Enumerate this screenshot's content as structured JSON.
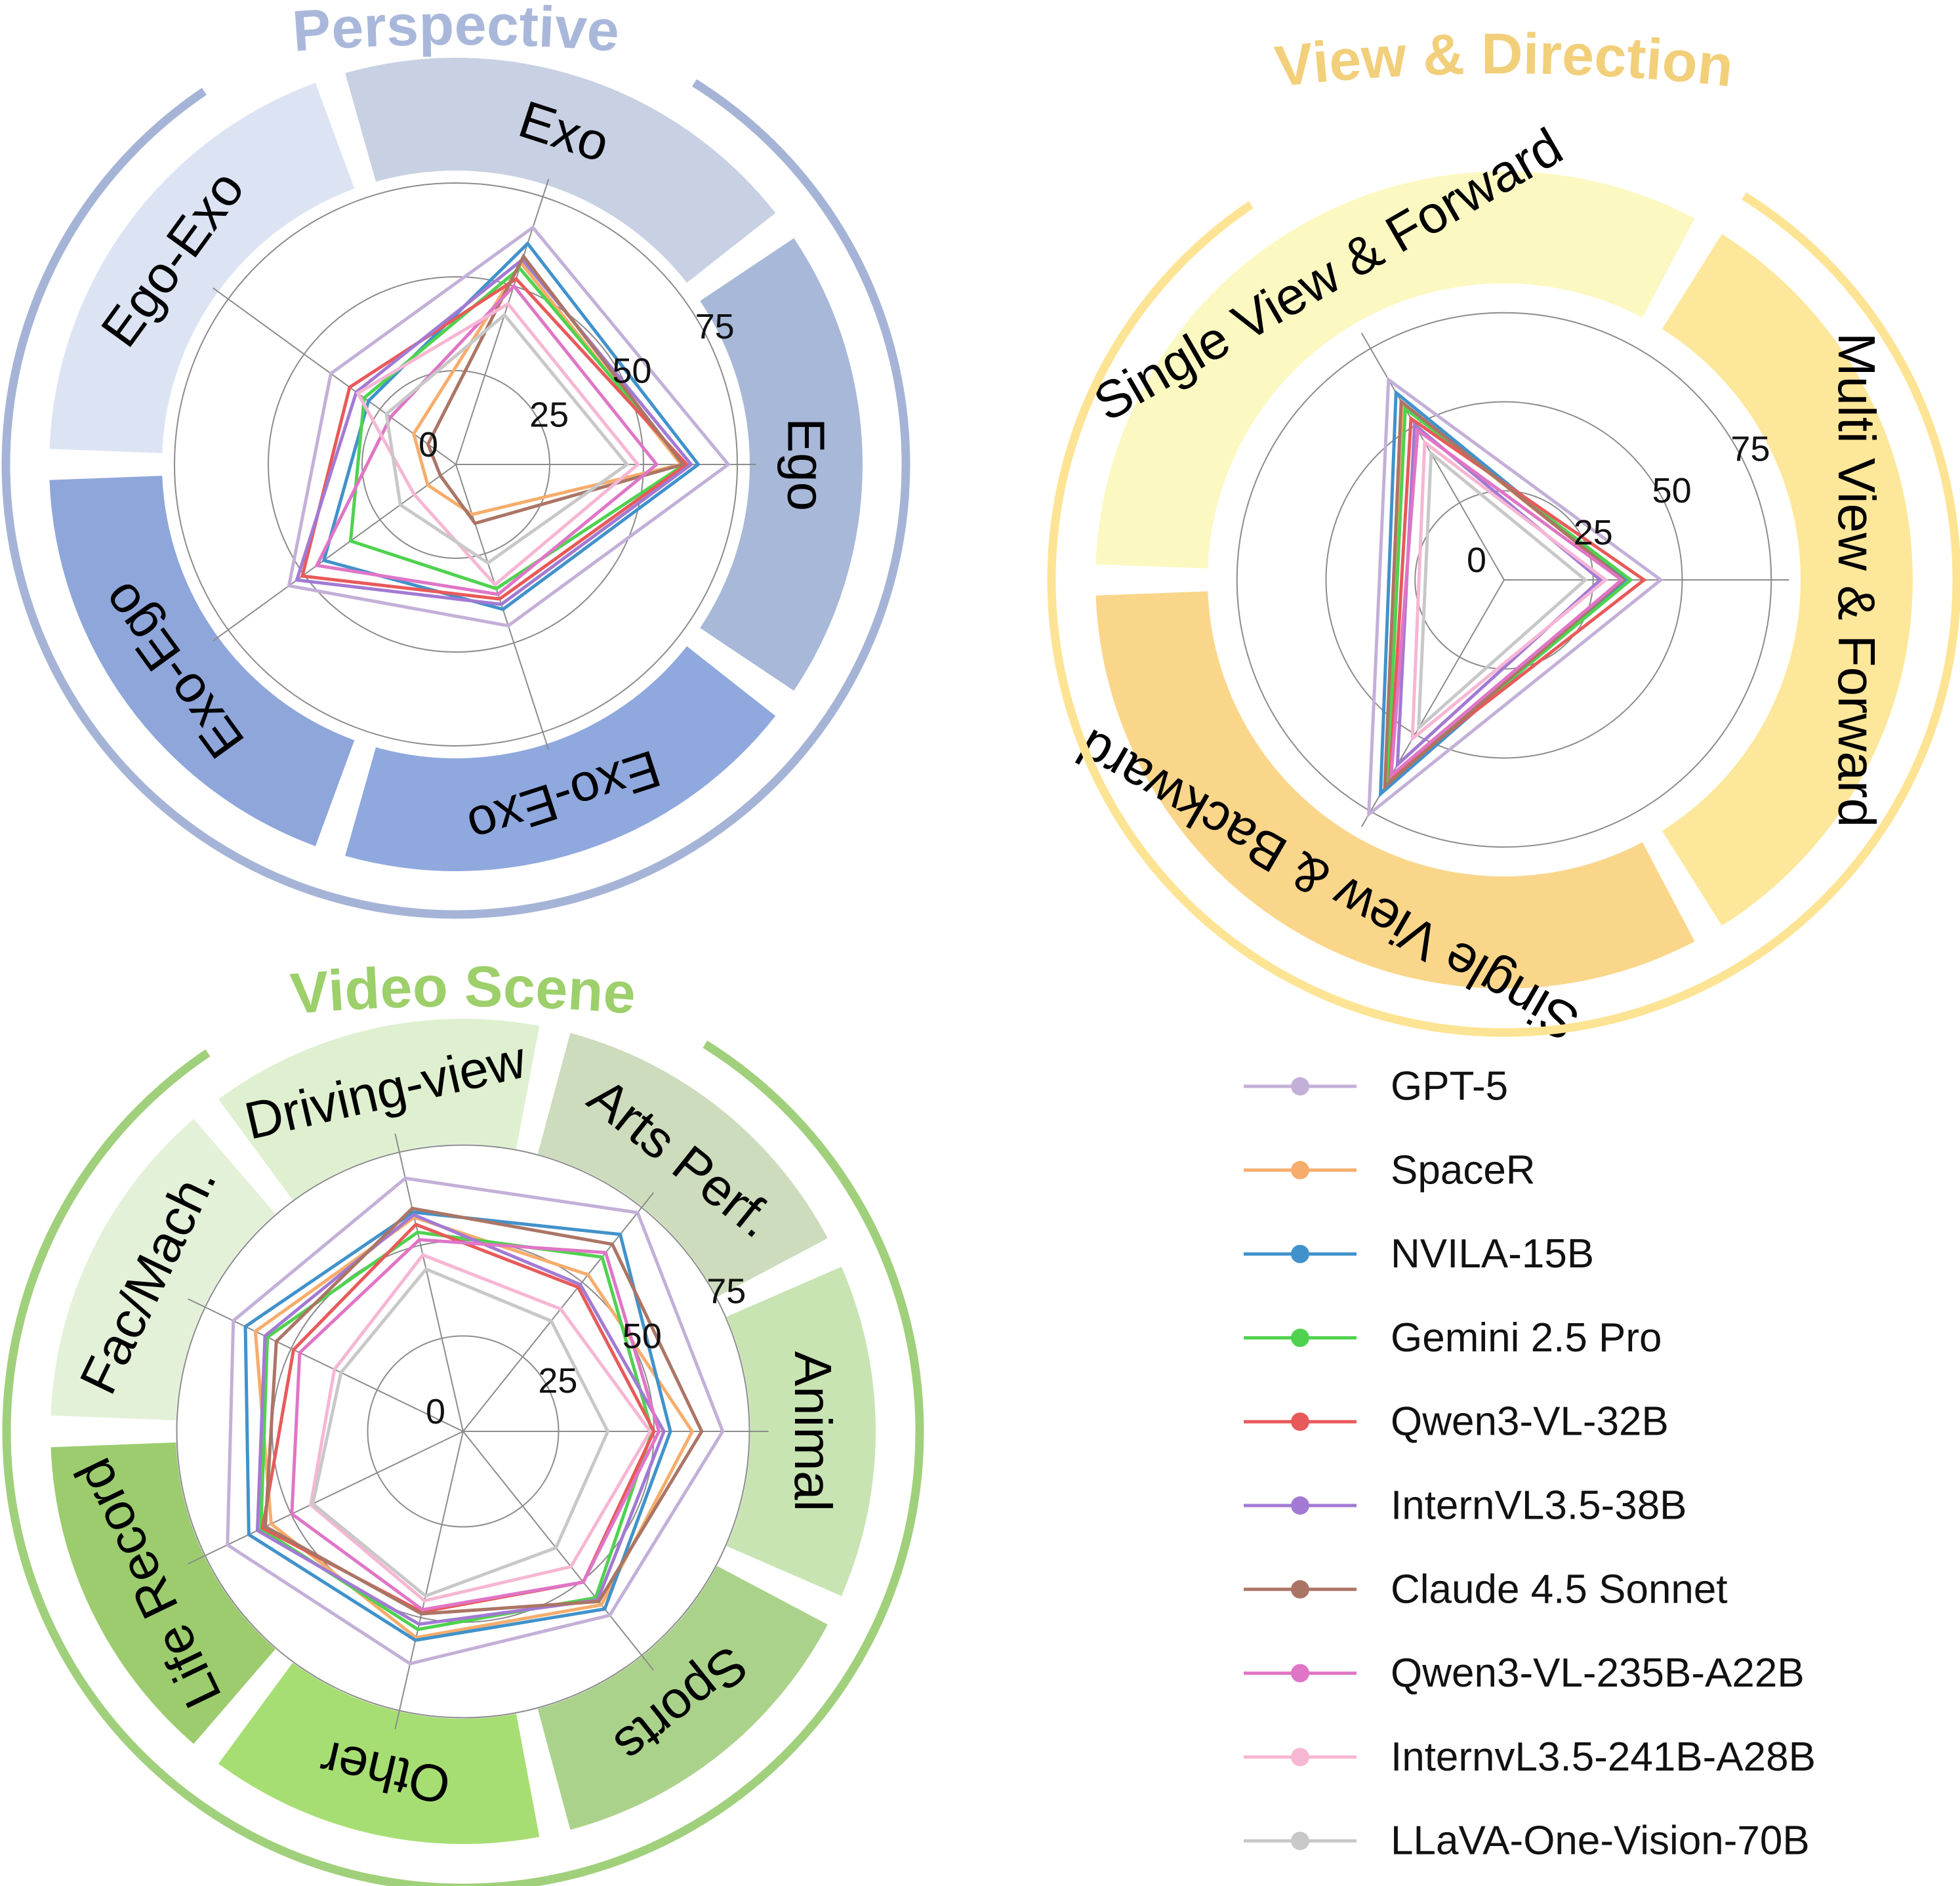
{
  "legend": [
    {
      "name": "GPT-5",
      "color": "#c3b0d8"
    },
    {
      "name": "SpaceR",
      "color": "#f6ad6b"
    },
    {
      "name": "NVILA-15B",
      "color": "#4192cb"
    },
    {
      "name": "Gemini 2.5 Pro",
      "color": "#4fd24f"
    },
    {
      "name": "Qwen3-VL-32B",
      "color": "#e85a5a"
    },
    {
      "name": "InternVL3.5-38B",
      "color": "#a27ad3"
    },
    {
      "name": "Claude 4.5 Sonnet",
      "color": "#ab7565"
    },
    {
      "name": "Qwen3-VL-235B-A22B",
      "color": "#e075c6"
    },
    {
      "name": "InternvL3.5-241B-A28B",
      "color": "#f6b6d4"
    },
    {
      "name": "LLaVA-One-Vision-70B",
      "color": "#c8c8c8"
    }
  ],
  "chart_data": [
    {
      "type": "radar",
      "title": "Perspective",
      "title_color": "#a9b8da",
      "rticks": [
        "0",
        "25",
        "50",
        "75"
      ],
      "categories": [
        "Ego",
        "Exo",
        "Ego-Exo",
        "Exo-Ego",
        "Exo-Exo"
      ],
      "category_colors": [
        "#a8b8d8",
        "#c8d0e3",
        "#dce4f4",
        "#8ea6da",
        "#8fa8de"
      ],
      "ring_color": "#a5b4d6",
      "series": [
        {
          "name": "GPT-5",
          "values": [
            72.6,
            66.4,
            41.2,
            55.0,
            45.2
          ]
        },
        {
          "name": "SpaceR",
          "values": [
            60.0,
            56.4,
            13.9,
            9.3,
            14.0
          ]
        },
        {
          "name": "NVILA-15B",
          "values": [
            64.6,
            61.9,
            28.8,
            43.5,
            40.6
          ]
        },
        {
          "name": "Gemini 2.5 Pro",
          "values": [
            61.0,
            55.0,
            30.2,
            34.7,
            34.8
          ]
        },
        {
          "name": "Qwen3-VL-32B",
          "values": [
            61.5,
            52.0,
            35.0,
            50.6,
            37.7
          ]
        },
        {
          "name": "InternVL3.5-38B",
          "values": [
            62.7,
            57.4,
            32.8,
            52.4,
            39.2
          ]
        },
        {
          "name": "Claude 4.5 Sonnet",
          "values": [
            60.5,
            58.3,
            9.2,
            5.1,
            16.5
          ]
        },
        {
          "name": "Qwen3-VL-235B-A22B",
          "values": [
            53.5,
            50.0,
            21.5,
            45.8,
            36.4
          ]
        },
        {
          "name": "InternvL3.5-241B-A28B",
          "values": [
            48.5,
            45.0,
            32.3,
            13.7,
            33.7
          ]
        },
        {
          "name": "LLaVA-One-Vision-70B",
          "values": [
            45.6,
            41.9,
            22.9,
            18.3,
            27.6
          ]
        }
      ]
    },
    {
      "type": "radar",
      "title": "View & Direction",
      "title_color": "#f2cf7a",
      "rticks": [
        "0",
        "25",
        "50",
        "75"
      ],
      "categories": [
        "Multi View & Forward",
        "Single View & Forward",
        "Single View & Backward"
      ],
      "category_colors": [
        "#fde79a",
        "#fbf8c2",
        "#fad68a"
      ],
      "ring_color": "#fde494",
      "series": [
        {
          "name": "GPT-5",
          "values": [
            44.0,
            64.9,
            76.0
          ]
        },
        {
          "name": "SpaceR",
          "values": [
            33.5,
            57.0,
            66.0
          ]
        },
        {
          "name": "NVILA-15B",
          "values": [
            34.0,
            60.7,
            69.4
          ]
        },
        {
          "name": "Gemini 2.5 Pro",
          "values": [
            35.5,
            55.5,
            65.4
          ]
        },
        {
          "name": "Qwen3-VL-32B",
          "values": [
            39.3,
            52.3,
            64.0
          ]
        },
        {
          "name": "InternVL3.5-38B",
          "values": [
            27.0,
            50.3,
            59.9
          ]
        },
        {
          "name": "Claude 4.5 Sonnet",
          "values": [
            33.5,
            57.8,
            67.0
          ]
        },
        {
          "name": "Qwen3-VL-235B-A22B",
          "values": [
            33.0,
            48.5,
            63.4
          ]
        },
        {
          "name": "InternvL3.5-241B-A28B",
          "values": [
            28.5,
            44.6,
            51.5
          ]
        },
        {
          "name": "LLaVA-One-Vision-70B",
          "values": [
            22.8,
            41.0,
            48.0
          ]
        }
      ]
    },
    {
      "type": "radar",
      "title": "Video Scene",
      "title_color": "#9dcf6b",
      "rticks": [
        "0",
        "25",
        "50",
        "75"
      ],
      "categories": [
        "Animal",
        "Arts Perf.",
        "Driving-view",
        "Fac/Mach.",
        "Life Record",
        "Other",
        "Sports"
      ],
      "category_colors": [
        "#c8e4b2",
        "#cddcbc",
        "#dff0d0",
        "#e4f1d9",
        "#9ccc6e",
        "#a7de73",
        "#abd28b"
      ],
      "ring_color": "#a0d07b",
      "series": [
        {
          "name": "GPT-5",
          "values": [
            68.0,
            73.3,
            68.0,
            66.8,
            68.5,
            62.4,
            61.6
          ]
        },
        {
          "name": "SpaceR",
          "values": [
            60.0,
            52.5,
            57.5,
            60.4,
            55.8,
            55.4,
            58.1
          ]
        },
        {
          "name": "NVILA-15B",
          "values": [
            54.3,
            66.0,
            58.9,
            63.3,
            62.3,
            56.1,
            59.5
          ]
        },
        {
          "name": "Gemini 2.5 Pro",
          "values": [
            49.5,
            58.4,
            53.5,
            56.9,
            58.8,
            53.2,
            55.7
          ]
        },
        {
          "name": "Qwen3-VL-32B",
          "values": [
            50.0,
            48.3,
            55.6,
            49.3,
            58.3,
            48.5,
            50.5
          ]
        },
        {
          "name": "InternVL3.5-38B",
          "values": [
            52.6,
            49.2,
            58.2,
            57.6,
            59.8,
            51.8,
            56.5
          ]
        },
        {
          "name": "Claude 4.5 Sonnet",
          "values": [
            62.5,
            62.7,
            59.9,
            54.3,
            57.5,
            49.0,
            57.0
          ]
        },
        {
          "name": "Qwen3-VL-235B-A22B",
          "values": [
            51.3,
            59.9,
            51.5,
            47.5,
            49.8,
            47.9,
            50.5
          ]
        },
        {
          "name": "InternvL3.5-241B-A28B",
          "values": [
            49.0,
            41.0,
            47.4,
            37.4,
            44.3,
            45.5,
            45.3
          ]
        },
        {
          "name": "LLaVA-One-Vision-70B",
          "values": [
            37.9,
            37.0,
            43.6,
            35.5,
            43.7,
            44.2,
            39.0
          ]
        }
      ]
    }
  ]
}
